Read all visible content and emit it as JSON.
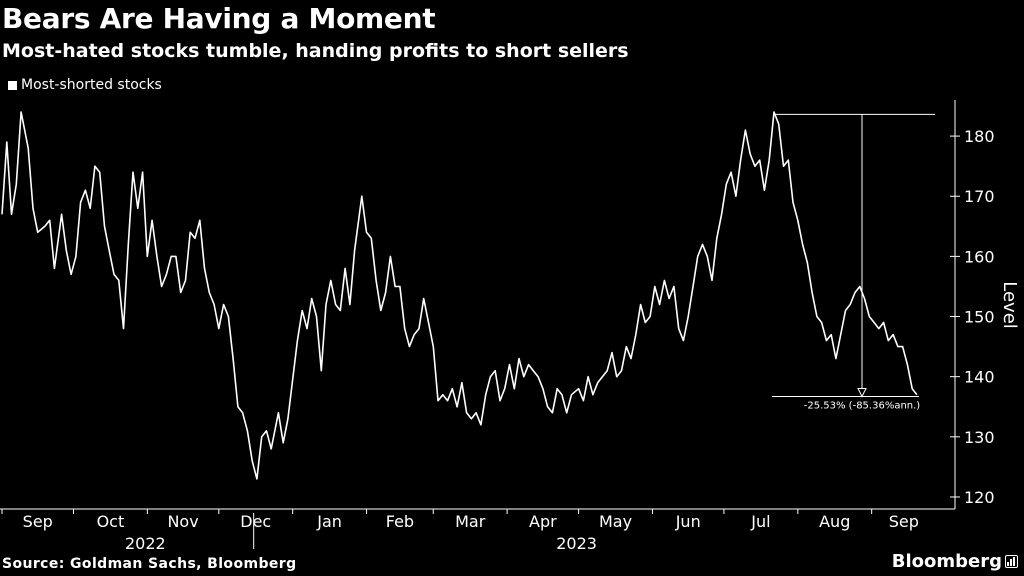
{
  "header": {
    "title": "Bears Are Having a Moment",
    "subtitle": "Most-hated stocks tumble, handing profits to short sellers"
  },
  "footer": {
    "source": "Source: Goldman Sachs, Bloomberg",
    "brand": "Bloomberg"
  },
  "colors": {
    "background": "#000000",
    "line": "#ffffff"
  },
  "chart_data": {
    "type": "line",
    "title": "Bears Are Having a Moment",
    "subtitle": "Most-hated stocks tumble, handing profits to short sellers",
    "ylabel": "Level",
    "xlabel": "",
    "ylim": [
      118,
      186
    ],
    "yticks": [
      120,
      130,
      140,
      150,
      160,
      170,
      180
    ],
    "y_axis_side": "right",
    "grid": false,
    "legend": {
      "position": "top-left",
      "entries": [
        "Most-shorted stocks"
      ]
    },
    "x_start": "2022-09-01",
    "x_end": "2023-09-28",
    "month_ticks": [
      {
        "label": "Sep",
        "date": "2022-09-01"
      },
      {
        "label": "Oct",
        "date": "2022-10-01"
      },
      {
        "label": "Nov",
        "date": "2022-11-01"
      },
      {
        "label": "Dec",
        "date": "2022-12-01"
      },
      {
        "label": "Jan",
        "date": "2023-01-01"
      },
      {
        "label": "Feb",
        "date": "2023-02-01"
      },
      {
        "label": "Mar",
        "date": "2023-03-01"
      },
      {
        "label": "Apr",
        "date": "2023-04-01"
      },
      {
        "label": "May",
        "date": "2023-05-01"
      },
      {
        "label": "Jun",
        "date": "2023-06-01"
      },
      {
        "label": "Jul",
        "date": "2023-07-01"
      },
      {
        "label": "Aug",
        "date": "2023-08-01"
      },
      {
        "label": "Sep",
        "date": "2023-09-01"
      }
    ],
    "year_labels": [
      {
        "label": "2022",
        "date": "2022-11-01"
      },
      {
        "label": "2023",
        "date": "2023-05-01"
      }
    ],
    "year_divider_date": "2023-01-01",
    "series": [
      {
        "name": "Most-shorted stocks",
        "points": [
          [
            "2022-09-01",
            167
          ],
          [
            "2022-09-03",
            179
          ],
          [
            "2022-09-05",
            167
          ],
          [
            "2022-09-07",
            172
          ],
          [
            "2022-09-09",
            184
          ],
          [
            "2022-09-12",
            178
          ],
          [
            "2022-09-14",
            168
          ],
          [
            "2022-09-16",
            164
          ],
          [
            "2022-09-19",
            165
          ],
          [
            "2022-09-21",
            166
          ],
          [
            "2022-09-23",
            158
          ],
          [
            "2022-09-26",
            167
          ],
          [
            "2022-09-28",
            161
          ],
          [
            "2022-09-30",
            157
          ],
          [
            "2022-10-02",
            160
          ],
          [
            "2022-10-04",
            169
          ],
          [
            "2022-10-06",
            171
          ],
          [
            "2022-10-08",
            168
          ],
          [
            "2022-10-10",
            175
          ],
          [
            "2022-10-12",
            174
          ],
          [
            "2022-10-14",
            165
          ],
          [
            "2022-10-16",
            161
          ],
          [
            "2022-10-18",
            157
          ],
          [
            "2022-10-20",
            156
          ],
          [
            "2022-10-22",
            148
          ],
          [
            "2022-10-24",
            162
          ],
          [
            "2022-10-26",
            174
          ],
          [
            "2022-10-28",
            168
          ],
          [
            "2022-10-30",
            174
          ],
          [
            "2022-11-01",
            160
          ],
          [
            "2022-11-03",
            166
          ],
          [
            "2022-11-05",
            160
          ],
          [
            "2022-11-07",
            155
          ],
          [
            "2022-11-09",
            157
          ],
          [
            "2022-11-11",
            160
          ],
          [
            "2022-11-13",
            160
          ],
          [
            "2022-11-15",
            154
          ],
          [
            "2022-11-17",
            156
          ],
          [
            "2022-11-19",
            164
          ],
          [
            "2022-11-21",
            163
          ],
          [
            "2022-11-23",
            166
          ],
          [
            "2022-11-25",
            158
          ],
          [
            "2022-11-27",
            154
          ],
          [
            "2022-11-29",
            152
          ],
          [
            "2022-12-01",
            148
          ],
          [
            "2022-12-03",
            152
          ],
          [
            "2022-12-05",
            150
          ],
          [
            "2022-12-07",
            143
          ],
          [
            "2022-12-09",
            135
          ],
          [
            "2022-12-11",
            134
          ],
          [
            "2022-12-13",
            131
          ],
          [
            "2022-12-15",
            126
          ],
          [
            "2022-12-17",
            123
          ],
          [
            "2022-12-19",
            130
          ],
          [
            "2022-12-21",
            131
          ],
          [
            "2022-12-23",
            128
          ],
          [
            "2022-12-26",
            134
          ],
          [
            "2022-12-28",
            129
          ],
          [
            "2022-12-30",
            133
          ],
          [
            "2023-01-03",
            146
          ],
          [
            "2023-01-05",
            151
          ],
          [
            "2023-01-07",
            148
          ],
          [
            "2023-01-09",
            153
          ],
          [
            "2023-01-11",
            150
          ],
          [
            "2023-01-13",
            141
          ],
          [
            "2023-01-15",
            152
          ],
          [
            "2023-01-17",
            156
          ],
          [
            "2023-01-19",
            152
          ],
          [
            "2023-01-21",
            151
          ],
          [
            "2023-01-23",
            158
          ],
          [
            "2023-01-25",
            152
          ],
          [
            "2023-01-27",
            161
          ],
          [
            "2023-01-30",
            170
          ],
          [
            "2023-02-01",
            164
          ],
          [
            "2023-02-03",
            163
          ],
          [
            "2023-02-05",
            156
          ],
          [
            "2023-02-07",
            151
          ],
          [
            "2023-02-09",
            154
          ],
          [
            "2023-02-11",
            160
          ],
          [
            "2023-02-13",
            155
          ],
          [
            "2023-02-15",
            155
          ],
          [
            "2023-02-17",
            148
          ],
          [
            "2023-02-19",
            145
          ],
          [
            "2023-02-21",
            147
          ],
          [
            "2023-02-23",
            148
          ],
          [
            "2023-02-25",
            153
          ],
          [
            "2023-02-27",
            149
          ],
          [
            "2023-03-01",
            145
          ],
          [
            "2023-03-03",
            136
          ],
          [
            "2023-03-05",
            137
          ],
          [
            "2023-03-07",
            136
          ],
          [
            "2023-03-09",
            138
          ],
          [
            "2023-03-11",
            135
          ],
          [
            "2023-03-13",
            139
          ],
          [
            "2023-03-15",
            134
          ],
          [
            "2023-03-17",
            133
          ],
          [
            "2023-03-19",
            134
          ],
          [
            "2023-03-21",
            132
          ],
          [
            "2023-03-23",
            137
          ],
          [
            "2023-03-25",
            140
          ],
          [
            "2023-03-27",
            141
          ],
          [
            "2023-03-29",
            136
          ],
          [
            "2023-03-31",
            138
          ],
          [
            "2023-04-02",
            142
          ],
          [
            "2023-04-04",
            138
          ],
          [
            "2023-04-06",
            143
          ],
          [
            "2023-04-08",
            140
          ],
          [
            "2023-04-10",
            142
          ],
          [
            "2023-04-12",
            141
          ],
          [
            "2023-04-14",
            140
          ],
          [
            "2023-04-16",
            138
          ],
          [
            "2023-04-18",
            135
          ],
          [
            "2023-04-20",
            134
          ],
          [
            "2023-04-22",
            138
          ],
          [
            "2023-04-24",
            137
          ],
          [
            "2023-04-26",
            134
          ],
          [
            "2023-04-28",
            137
          ],
          [
            "2023-05-01",
            138
          ],
          [
            "2023-05-03",
            136
          ],
          [
            "2023-05-05",
            140
          ],
          [
            "2023-05-07",
            137
          ],
          [
            "2023-05-09",
            139
          ],
          [
            "2023-05-11",
            140
          ],
          [
            "2023-05-13",
            141
          ],
          [
            "2023-05-15",
            144
          ],
          [
            "2023-05-17",
            140
          ],
          [
            "2023-05-19",
            141
          ],
          [
            "2023-05-21",
            145
          ],
          [
            "2023-05-23",
            143
          ],
          [
            "2023-05-25",
            147
          ],
          [
            "2023-05-27",
            152
          ],
          [
            "2023-05-29",
            149
          ],
          [
            "2023-05-31",
            150
          ],
          [
            "2023-06-02",
            155
          ],
          [
            "2023-06-04",
            152
          ],
          [
            "2023-06-06",
            156
          ],
          [
            "2023-06-08",
            153
          ],
          [
            "2023-06-10",
            155
          ],
          [
            "2023-06-12",
            148
          ],
          [
            "2023-06-14",
            146
          ],
          [
            "2023-06-16",
            150
          ],
          [
            "2023-06-18",
            155
          ],
          [
            "2023-06-20",
            160
          ],
          [
            "2023-06-22",
            162
          ],
          [
            "2023-06-24",
            160
          ],
          [
            "2023-06-26",
            156
          ],
          [
            "2023-06-28",
            163
          ],
          [
            "2023-06-30",
            167
          ],
          [
            "2023-07-02",
            172
          ],
          [
            "2023-07-04",
            174
          ],
          [
            "2023-07-06",
            170
          ],
          [
            "2023-07-08",
            176
          ],
          [
            "2023-07-10",
            181
          ],
          [
            "2023-07-12",
            177
          ],
          [
            "2023-07-14",
            175
          ],
          [
            "2023-07-16",
            176
          ],
          [
            "2023-07-18",
            171
          ],
          [
            "2023-07-20",
            176
          ],
          [
            "2023-07-22",
            184
          ],
          [
            "2023-07-24",
            182
          ],
          [
            "2023-07-26",
            175
          ],
          [
            "2023-07-28",
            176
          ],
          [
            "2023-07-30",
            169
          ],
          [
            "2023-08-01",
            166
          ],
          [
            "2023-08-03",
            162
          ],
          [
            "2023-08-05",
            159
          ],
          [
            "2023-08-07",
            154
          ],
          [
            "2023-08-09",
            150
          ],
          [
            "2023-08-11",
            149
          ],
          [
            "2023-08-13",
            146
          ],
          [
            "2023-08-15",
            147
          ],
          [
            "2023-08-17",
            143
          ],
          [
            "2023-08-19",
            147
          ],
          [
            "2023-08-21",
            151
          ],
          [
            "2023-08-23",
            152
          ],
          [
            "2023-08-25",
            154
          ],
          [
            "2023-08-27",
            155
          ],
          [
            "2023-08-29",
            153
          ],
          [
            "2023-08-31",
            150
          ],
          [
            "2023-09-02",
            149
          ],
          [
            "2023-09-04",
            148
          ],
          [
            "2023-09-06",
            149
          ],
          [
            "2023-09-08",
            146
          ],
          [
            "2023-09-10",
            147
          ],
          [
            "2023-09-12",
            145
          ],
          [
            "2023-09-14",
            145
          ],
          [
            "2023-09-16",
            142
          ],
          [
            "2023-09-18",
            138
          ],
          [
            "2023-09-20",
            137
          ]
        ]
      }
    ],
    "annotations": [
      {
        "type": "drawdown",
        "from_date": "2023-07-22",
        "from_value": 183.6,
        "to_date": "2023-09-20",
        "to_value": 136.7,
        "label": "-25.53% (-85.36%ann.)"
      }
    ]
  }
}
